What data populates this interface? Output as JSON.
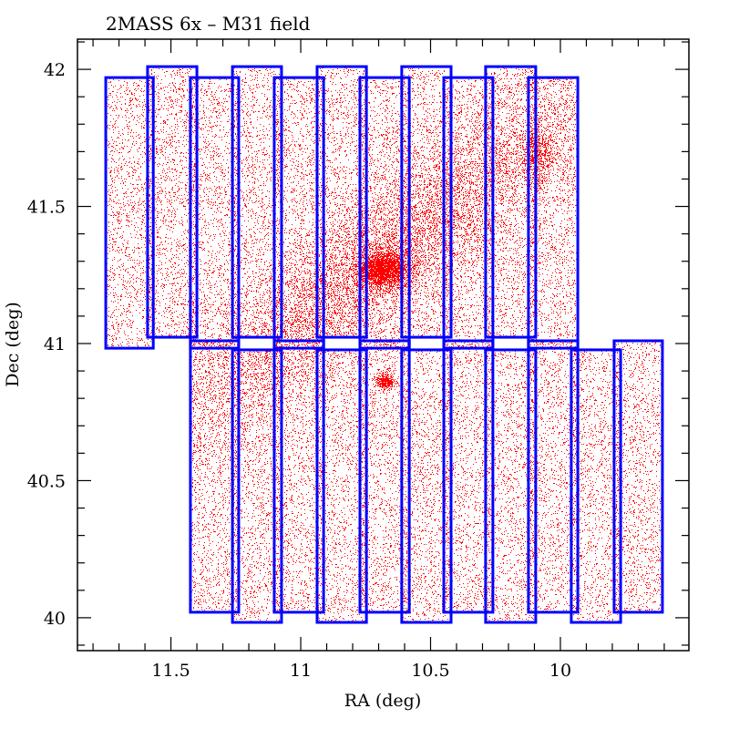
{
  "chart_data": {
    "type": "scatter",
    "title": "2MASS 6x  –  M31 field",
    "xlabel": "RA (deg)",
    "ylabel": "Dec (deg)",
    "xlim": [
      11.86,
      9.505
    ],
    "ylim": [
      39.88,
      42.11
    ],
    "x_inverted": true,
    "grid": false,
    "x_major_ticks": [
      11.5,
      11,
      10.5,
      10
    ],
    "x_tick_labels": [
      "11.5",
      "11",
      "10.5",
      "10"
    ],
    "x_minor_step": 0.1,
    "y_major_ticks": [
      40,
      40.5,
      41,
      41.5,
      42
    ],
    "y_tick_labels": [
      "40",
      "40.5",
      "41",
      "41.5",
      "42"
    ],
    "y_minor_step": 0.1,
    "colors": {
      "points": "#ff0000",
      "tiles": "#0000ff",
      "axes": "#000000"
    },
    "point_series": {
      "name": "2MASS sources",
      "approx_count": 60000,
      "background_density": 1.0,
      "overdensities": [
        {
          "name": "M31 nucleus",
          "ra": 10.684,
          "dec": 41.272,
          "sigma_ra": 0.05,
          "sigma_dec": 0.035,
          "weight": 2600
        },
        {
          "name": "M31 disk",
          "ra": 10.7,
          "dec": 41.3,
          "sigma_ra": 0.55,
          "sigma_dec": 0.12,
          "weight": 9000,
          "pa_deg": -38
        },
        {
          "name": "NGC 205",
          "ra": 10.088,
          "dec": 41.688,
          "sigma_ra": 0.03,
          "sigma_dec": 0.06,
          "weight": 600
        },
        {
          "name": "M32",
          "ra": 10.677,
          "dec": 40.864,
          "sigma_ra": 0.018,
          "sigma_dec": 0.014,
          "weight": 350
        }
      ]
    },
    "tiles": [
      {
        "ra": [
          11.751,
          11.568
        ],
        "dec": [
          40.983,
          41.97
        ]
      },
      {
        "ra": [
          11.59,
          11.4
        ],
        "dec": [
          41.023,
          42.01
        ]
      },
      {
        "ra": [
          11.425,
          11.239
        ],
        "dec": [
          40.983,
          41.97
        ]
      },
      {
        "ra": [
          11.263,
          11.074
        ],
        "dec": [
          41.023,
          42.01
        ]
      },
      {
        "ra": [
          11.102,
          10.912
        ],
        "dec": [
          40.983,
          41.97
        ]
      },
      {
        "ra": [
          10.937,
          10.747
        ],
        "dec": [
          41.023,
          42.01
        ]
      },
      {
        "ra": [
          10.772,
          10.582
        ],
        "dec": [
          40.983,
          41.97
        ]
      },
      {
        "ra": [
          10.611,
          10.421
        ],
        "dec": [
          41.023,
          42.01
        ]
      },
      {
        "ra": [
          10.449,
          10.26
        ],
        "dec": [
          40.983,
          41.97
        ]
      },
      {
        "ra": [
          10.288,
          10.095
        ],
        "dec": [
          41.023,
          42.01
        ]
      },
      {
        "ra": [
          10.123,
          9.933
        ],
        "dec": [
          40.983,
          41.97
        ]
      },
      {
        "ra": [
          11.425,
          11.239
        ],
        "dec": [
          40.02,
          41.01
        ]
      },
      {
        "ra": [
          11.263,
          11.074
        ],
        "dec": [
          39.983,
          40.977
        ]
      },
      {
        "ra": [
          11.102,
          10.912
        ],
        "dec": [
          40.02,
          41.01
        ]
      },
      {
        "ra": [
          10.937,
          10.747
        ],
        "dec": [
          39.983,
          40.977
        ]
      },
      {
        "ra": [
          10.772,
          10.582
        ],
        "dec": [
          40.02,
          41.01
        ]
      },
      {
        "ra": [
          10.611,
          10.421
        ],
        "dec": [
          39.983,
          40.977
        ]
      },
      {
        "ra": [
          10.449,
          10.26
        ],
        "dec": [
          40.02,
          41.01
        ]
      },
      {
        "ra": [
          10.288,
          10.095
        ],
        "dec": [
          39.983,
          40.977
        ]
      },
      {
        "ra": [
          10.123,
          9.933
        ],
        "dec": [
          40.02,
          41.01
        ]
      },
      {
        "ra": [
          9.958,
          9.768
        ],
        "dec": [
          39.983,
          40.977
        ]
      },
      {
        "ra": [
          9.793,
          9.607
        ],
        "dec": [
          40.02,
          41.01
        ]
      }
    ]
  }
}
